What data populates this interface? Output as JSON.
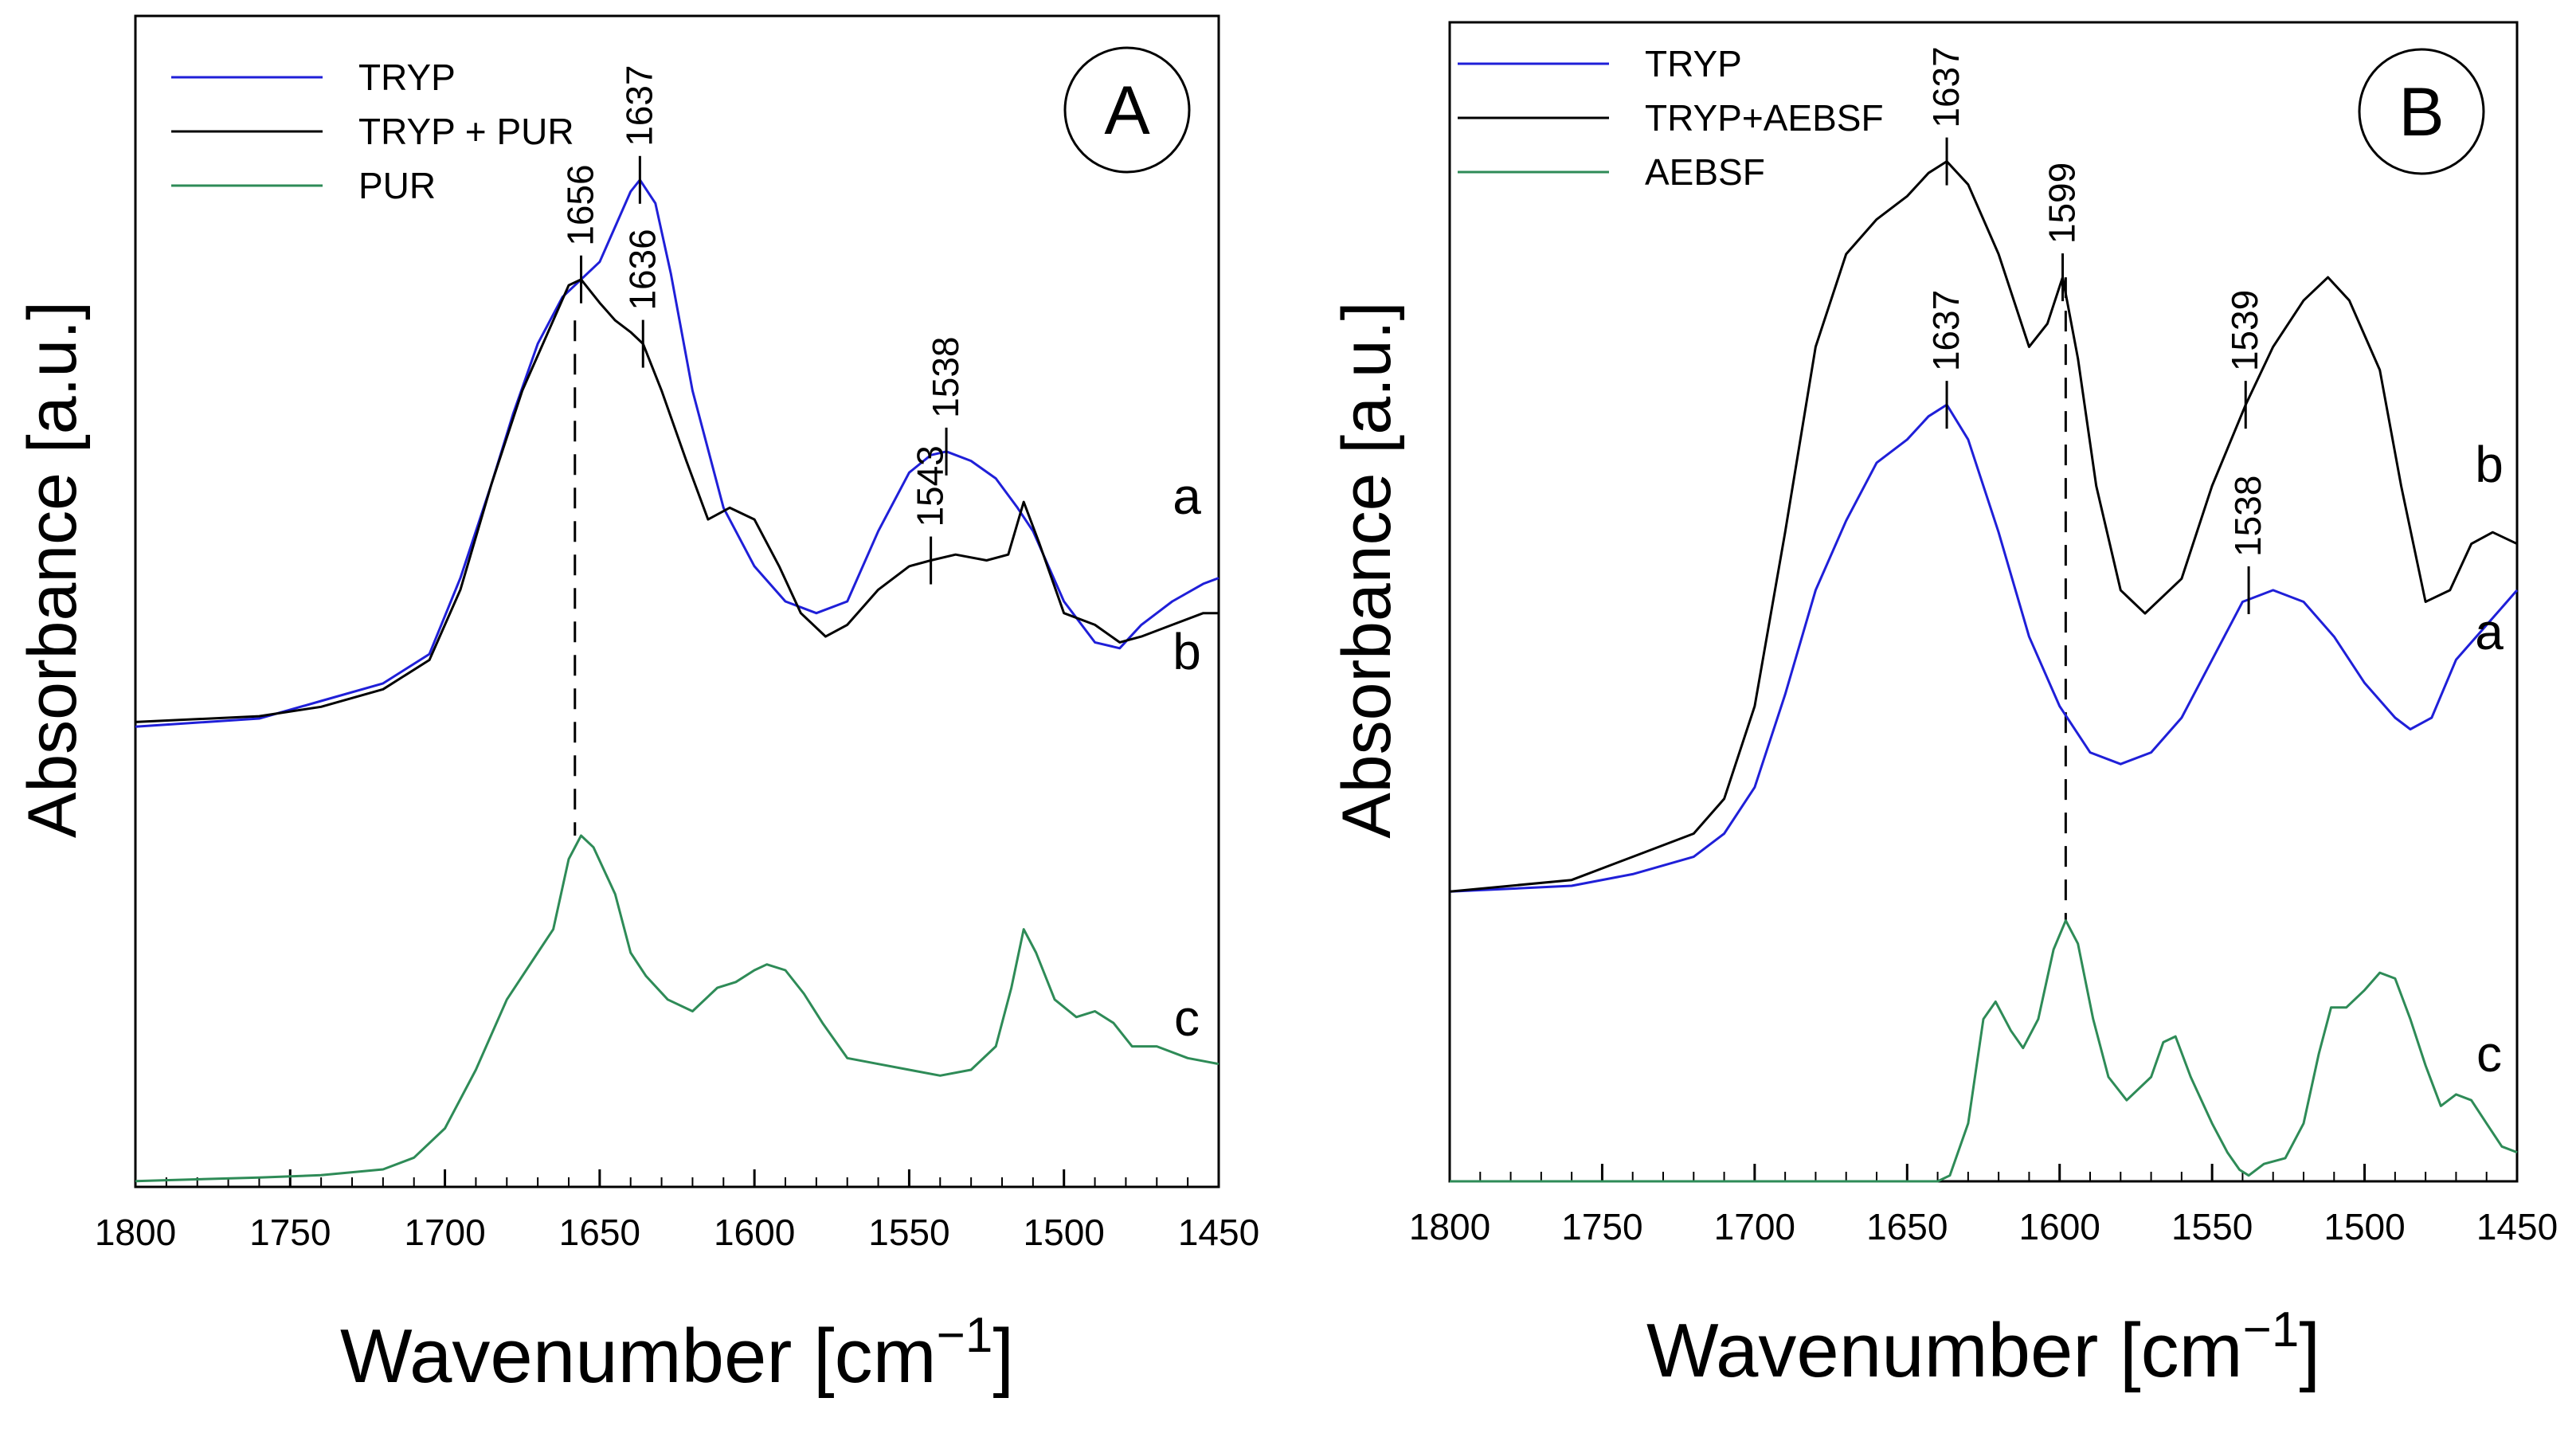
{
  "chart_data": [
    {
      "panel": "A",
      "type": "line",
      "xlabel": "Wavenumber [cm",
      "xlabel_sup": "−1",
      "xlabel_close": "]",
      "ylabel": "Absorbance [a.u.]",
      "xlim": [
        1800,
        1450
      ],
      "x_reversed": true,
      "ylim": [
        0,
        1
      ],
      "y_ticks_shown": false,
      "grid": false,
      "legend_position": "top-left",
      "x_ticks": [
        1800,
        1750,
        1700,
        1650,
        1600,
        1550,
        1500,
        1450
      ],
      "x_tick_labels": [
        "1800",
        "1750",
        "1700",
        "1650",
        "1600",
        "1550",
        "1500",
        "1450"
      ],
      "series": [
        {
          "name": "TRYP",
          "legend_label": "TRYP",
          "curve_label": "a",
          "color": "#1f1fd8",
          "x": [
            1800,
            1760,
            1740,
            1720,
            1705,
            1695,
            1685,
            1678,
            1670,
            1662,
            1656,
            1650,
            1645,
            1640,
            1637,
            1632,
            1627,
            1620,
            1610,
            1600,
            1590,
            1580,
            1570,
            1560,
            1550,
            1543,
            1538,
            1530,
            1522,
            1515,
            1510,
            1500,
            1490,
            1482,
            1475,
            1465,
            1455,
            1450
          ],
          "y": [
            0.393,
            0.4,
            0.415,
            0.43,
            0.455,
            0.52,
            0.6,
            0.66,
            0.72,
            0.76,
            0.775,
            0.79,
            0.82,
            0.85,
            0.86,
            0.84,
            0.78,
            0.68,
            0.58,
            0.53,
            0.5,
            0.49,
            0.5,
            0.56,
            0.61,
            0.625,
            0.628,
            0.62,
            0.605,
            0.58,
            0.56,
            0.5,
            0.465,
            0.46,
            0.48,
            0.5,
            0.515,
            0.52
          ]
        },
        {
          "name": "TRYP + PUR",
          "legend_label": "TRYP + PUR",
          "curve_label": "b",
          "color": "#000000",
          "x": [
            1800,
            1760,
            1740,
            1720,
            1705,
            1695,
            1685,
            1675,
            1665,
            1660,
            1656,
            1650,
            1645,
            1640,
            1636,
            1630,
            1622,
            1615,
            1608,
            1600,
            1592,
            1585,
            1577,
            1570,
            1560,
            1550,
            1543,
            1535,
            1525,
            1518,
            1513,
            1508,
            1500,
            1490,
            1482,
            1475,
            1465,
            1455,
            1450
          ],
          "y": [
            0.397,
            0.402,
            0.41,
            0.425,
            0.45,
            0.51,
            0.6,
            0.68,
            0.74,
            0.77,
            0.775,
            0.755,
            0.74,
            0.73,
            0.72,
            0.68,
            0.62,
            0.57,
            0.58,
            0.57,
            0.53,
            0.49,
            0.47,
            0.48,
            0.51,
            0.53,
            0.535,
            0.54,
            0.535,
            0.54,
            0.585,
            0.55,
            0.49,
            0.48,
            0.465,
            0.47,
            0.48,
            0.49,
            0.49
          ]
        },
        {
          "name": "PUR",
          "legend_label": "PUR",
          "curve_label": "c",
          "color": "#2e8b57",
          "x": [
            1800,
            1760,
            1740,
            1720,
            1710,
            1700,
            1690,
            1680,
            1670,
            1665,
            1660,
            1656,
            1652,
            1645,
            1640,
            1635,
            1628,
            1620,
            1612,
            1606,
            1600,
            1596,
            1590,
            1584,
            1578,
            1570,
            1560,
            1550,
            1540,
            1530,
            1522,
            1517,
            1513,
            1509,
            1503,
            1496,
            1490,
            1484,
            1478,
            1470,
            1460,
            1450
          ],
          "y": [
            0.005,
            0.008,
            0.01,
            0.015,
            0.025,
            0.05,
            0.1,
            0.16,
            0.2,
            0.22,
            0.28,
            0.3,
            0.29,
            0.25,
            0.2,
            0.18,
            0.16,
            0.15,
            0.17,
            0.175,
            0.185,
            0.19,
            0.185,
            0.165,
            0.14,
            0.11,
            0.105,
            0.1,
            0.095,
            0.1,
            0.12,
            0.17,
            0.22,
            0.2,
            0.16,
            0.145,
            0.15,
            0.14,
            0.12,
            0.12,
            0.11,
            0.105
          ]
        }
      ],
      "peak_labels": [
        {
          "text": "1637",
          "x": 1637,
          "y": 0.86
        },
        {
          "text": "1656",
          "x": 1656,
          "y": 0.775
        },
        {
          "text": "1636",
          "x": 1636,
          "y": 0.72
        },
        {
          "text": "1538",
          "x": 1538,
          "y": 0.628
        },
        {
          "text": "1543",
          "x": 1543,
          "y": 0.535
        }
      ],
      "dashed_line": {
        "x": 1658,
        "from": 0.74,
        "to": 0.3
      },
      "panel_label": "A"
    },
    {
      "panel": "B",
      "type": "line",
      "xlabel": "Wavenumber [cm",
      "xlabel_sup": "−1",
      "xlabel_close": "]",
      "ylabel": "Absorbance [a.u.]",
      "xlim": [
        1800,
        1450
      ],
      "x_reversed": true,
      "ylim": [
        0,
        1
      ],
      "y_ticks_shown": false,
      "grid": false,
      "legend_position": "top-left",
      "x_ticks": [
        1800,
        1750,
        1700,
        1650,
        1600,
        1550,
        1500,
        1450
      ],
      "x_tick_labels": [
        "1800",
        "1750",
        "1700",
        "1650",
        "1600",
        "1550",
        "1500",
        "1450"
      ],
      "series": [
        {
          "name": "TRYP",
          "legend_label": "TRYP",
          "curve_label": "a",
          "color": "#1f1fd8",
          "x": [
            1800,
            1760,
            1740,
            1720,
            1710,
            1700,
            1690,
            1680,
            1670,
            1660,
            1650,
            1643,
            1637,
            1630,
            1620,
            1610,
            1600,
            1590,
            1580,
            1570,
            1560,
            1550,
            1540,
            1530,
            1520,
            1510,
            1500,
            1490,
            1485,
            1478,
            1470,
            1460,
            1455,
            1450
          ],
          "y": [
            0.25,
            0.255,
            0.265,
            0.28,
            0.3,
            0.34,
            0.42,
            0.51,
            0.57,
            0.62,
            0.64,
            0.66,
            0.67,
            0.64,
            0.56,
            0.47,
            0.41,
            0.37,
            0.36,
            0.37,
            0.4,
            0.45,
            0.5,
            0.51,
            0.5,
            0.47,
            0.43,
            0.4,
            0.39,
            0.4,
            0.45,
            0.48,
            0.495,
            0.51
          ]
        },
        {
          "name": "TRYP+AEBSF",
          "legend_label": "TRYP+AEBSF",
          "curve_label": "b",
          "color": "#000000",
          "x": [
            1800,
            1760,
            1740,
            1720,
            1710,
            1700,
            1690,
            1680,
            1670,
            1660,
            1650,
            1643,
            1637,
            1630,
            1620,
            1610,
            1604,
            1599,
            1594,
            1588,
            1580,
            1572,
            1560,
            1550,
            1539,
            1530,
            1520,
            1512,
            1505,
            1495,
            1488,
            1480,
            1472,
            1465,
            1458,
            1450
          ],
          "y": [
            0.25,
            0.26,
            0.28,
            0.3,
            0.33,
            0.41,
            0.56,
            0.72,
            0.8,
            0.83,
            0.85,
            0.87,
            0.88,
            0.86,
            0.8,
            0.72,
            0.74,
            0.78,
            0.71,
            0.6,
            0.51,
            0.49,
            0.52,
            0.6,
            0.67,
            0.72,
            0.76,
            0.78,
            0.76,
            0.7,
            0.6,
            0.5,
            0.51,
            0.55,
            0.56,
            0.55
          ]
        },
        {
          "name": "AEBSF",
          "legend_label": "AEBSF",
          "curve_label": "c",
          "color": "#2e8b57",
          "x": [
            1800,
            1700,
            1660,
            1640,
            1636,
            1630,
            1625,
            1621,
            1616,
            1612,
            1607,
            1602,
            1598,
            1594,
            1589,
            1584,
            1578,
            1570,
            1566,
            1562,
            1557,
            1550,
            1545,
            1541,
            1538,
            1533,
            1526,
            1520,
            1515,
            1511,
            1506,
            1500,
            1495,
            1490,
            1485,
            1480,
            1475,
            1470,
            1465,
            1460,
            1455,
            1450
          ],
          "y": [
            0.0,
            0.0,
            0.0,
            0.0,
            0.005,
            0.05,
            0.14,
            0.155,
            0.13,
            0.115,
            0.14,
            0.2,
            0.225,
            0.205,
            0.14,
            0.09,
            0.07,
            0.09,
            0.12,
            0.125,
            0.09,
            0.05,
            0.025,
            0.01,
            0.005,
            0.015,
            0.02,
            0.05,
            0.11,
            0.15,
            0.15,
            0.165,
            0.18,
            0.175,
            0.14,
            0.1,
            0.065,
            0.075,
            0.07,
            0.05,
            0.03,
            0.025
          ]
        }
      ],
      "peak_labels": [
        {
          "text": "1637",
          "x": 1637,
          "y": 0.88
        },
        {
          "text": "1599",
          "x": 1599,
          "y": 0.78
        },
        {
          "text": "1539",
          "x": 1539,
          "y": 0.67
        },
        {
          "text": "1637",
          "x": 1637,
          "y": 0.67
        },
        {
          "text": "1538",
          "x": 1538,
          "y": 0.51
        }
      ],
      "dashed_line": {
        "x": 1598,
        "from": 0.78,
        "to": 0.225
      },
      "panel_label": "B"
    }
  ]
}
